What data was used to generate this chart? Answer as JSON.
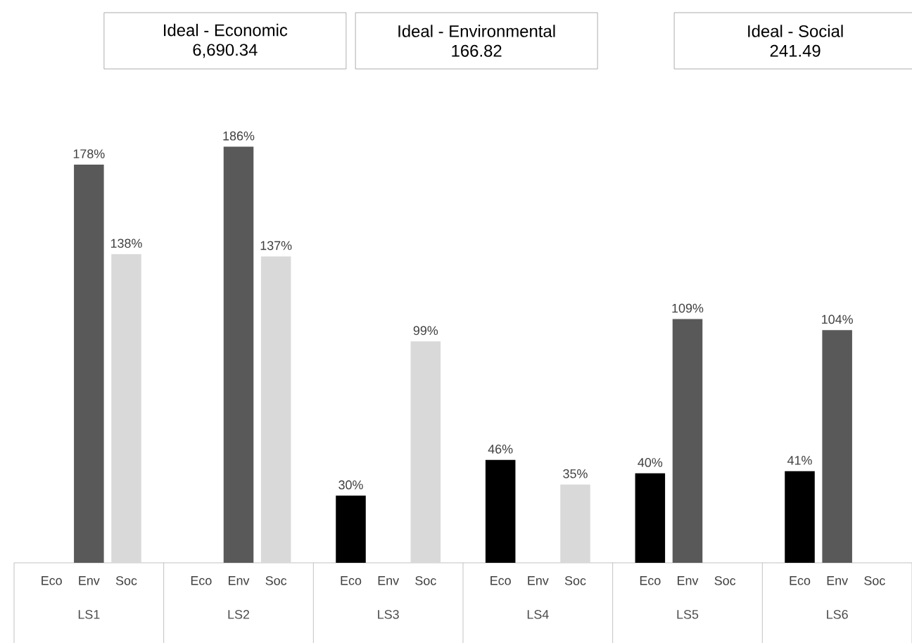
{
  "chart_data": {
    "type": "bar",
    "categories": [
      "LS1",
      "LS2",
      "LS3",
      "LS4",
      "LS5",
      "LS6"
    ],
    "series": [
      {
        "name": "Eco",
        "color": "#000000",
        "values": [
          null,
          null,
          30,
          46,
          40,
          41
        ],
        "value_labels": [
          null,
          null,
          "30%",
          "46%",
          "40%",
          "41%"
        ]
      },
      {
        "name": "Env",
        "color": "#595959",
        "values": [
          178,
          186,
          null,
          null,
          109,
          104
        ],
        "value_labels": [
          "178%",
          "186%",
          null,
          null,
          "109%",
          "104%"
        ]
      },
      {
        "name": "Soc",
        "color": "#d9d9d9",
        "values": [
          138,
          137,
          99,
          35,
          null,
          null
        ],
        "value_labels": [
          "138%",
          "137%",
          "99%",
          "35%",
          null,
          null
        ]
      }
    ],
    "annotations": [
      "Ideal - Economic",
      "6,690.34",
      "Ideal - Environmental",
      "166.82",
      "Ideal - Social",
      "241.49"
    ]
  }
}
